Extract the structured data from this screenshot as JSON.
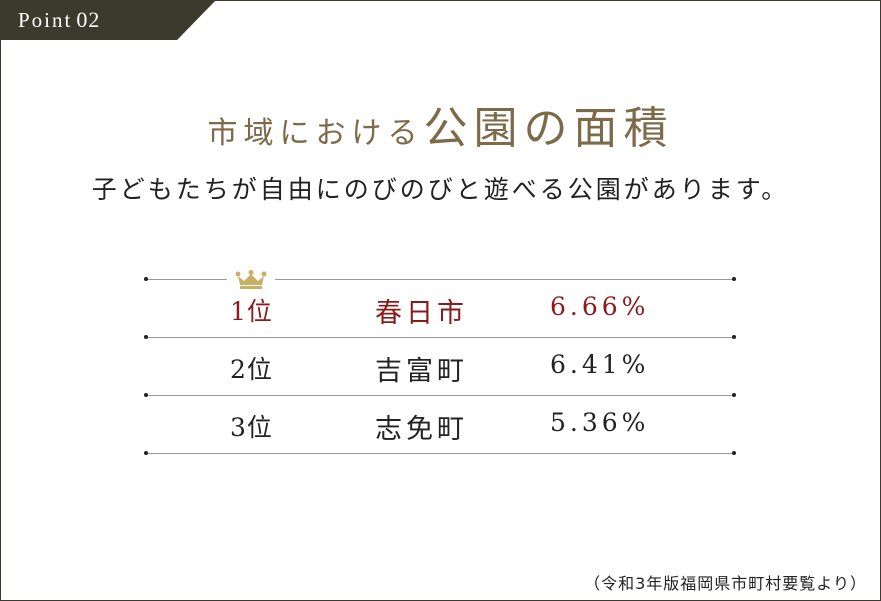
{
  "badge": {
    "word": "Point",
    "number": "02"
  },
  "heading": {
    "part1": "市域における",
    "part2": "公園の面積"
  },
  "subheading": "子どもたちが自由にのびのびと遊べる公園があります。",
  "ranking": {
    "rows": [
      {
        "rank": "1位",
        "city": "春日市",
        "pct": "6.66%"
      },
      {
        "rank": "2位",
        "city": "吉富町",
        "pct": "6.41%"
      },
      {
        "rank": "3位",
        "city": "志免町",
        "pct": "5.36%"
      }
    ],
    "highlight_color": "#8b1a1a",
    "crown_icon": "crown-icon"
  },
  "source": "（令和3年版福岡県市町村要覧より）",
  "colors": {
    "badge_bg": "#3b3a2c",
    "heading": "#7d6a48",
    "crown": "#c9b067"
  }
}
